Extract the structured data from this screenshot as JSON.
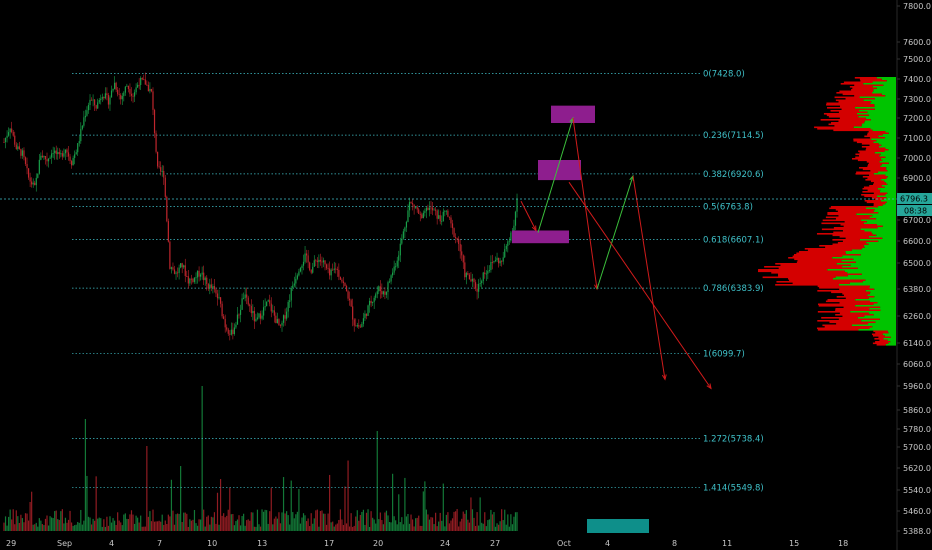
{
  "chart_data": {
    "type": "candlestick",
    "title": "",
    "price_axis": {
      "ticks": [
        7800,
        7600,
        7500,
        7400,
        7300,
        7200,
        7100,
        7000,
        6900,
        6800,
        6700,
        6600,
        6500,
        6380,
        6260,
        6140,
        6060,
        5960,
        5860,
        5780,
        5700,
        5620,
        5540,
        5460,
        5388
      ],
      "labels": [
        "7800.0",
        "7600.0",
        "7500.0",
        "7400.0",
        "7300.0",
        "7200.0",
        "7100.0",
        "7000.0",
        "6900.0",
        "6800.0",
        "6700.0",
        "6600.0",
        "6500.0",
        "6380.0",
        "6260.0",
        "6140.0",
        "6060.0",
        "5960.0",
        "5860.0",
        "5780.0",
        "5700.0",
        "5620.0",
        "5540.0",
        "5460.0",
        "5388.0"
      ]
    },
    "time_axis": {
      "labels": [
        "29",
        "Sep",
        "4",
        "7",
        "10",
        "13",
        "17",
        "20",
        "24",
        "27",
        "Oct",
        "4",
        "8",
        "11",
        "15",
        "18"
      ]
    },
    "current_price": "6796.3",
    "countdown": "08:38",
    "fib_levels": [
      {
        "ratio": "0",
        "price": 7428.0,
        "label": "0(7428.0)"
      },
      {
        "ratio": "0.236",
        "price": 7114.5,
        "label": "0.236(7114.5)"
      },
      {
        "ratio": "0.382",
        "price": 6920.6,
        "label": "0.382(6920.6)"
      },
      {
        "ratio": "0.5",
        "price": 6763.8,
        "label": "0.5(6763.8)"
      },
      {
        "ratio": "0.618",
        "price": 6607.1,
        "label": "0.618(6607.1)"
      },
      {
        "ratio": "0.786",
        "price": 6383.9,
        "label": "0.786(6383.9)"
      },
      {
        "ratio": "1",
        "price": 6099.7,
        "label": "1(6099.7)"
      },
      {
        "ratio": "1.272",
        "price": 5738.4,
        "label": "1.272(5738.4)"
      },
      {
        "ratio": "1.414",
        "price": 5549.8,
        "label": "1.414(5549.8)"
      }
    ],
    "price_path_keypoints": [
      [
        0,
        7080
      ],
      [
        4,
        7160
      ],
      [
        8,
        7050
      ],
      [
        12,
        7020
      ],
      [
        16,
        6900
      ],
      [
        20,
        6850
      ],
      [
        24,
        7020
      ],
      [
        28,
        6990
      ],
      [
        32,
        7040
      ],
      [
        36,
        7000
      ],
      [
        40,
        7050
      ],
      [
        44,
        6980
      ],
      [
        48,
        7060
      ],
      [
        52,
        7200
      ],
      [
        56,
        7300
      ],
      [
        60,
        7260
      ],
      [
        64,
        7330
      ],
      [
        68,
        7290
      ],
      [
        72,
        7380
      ],
      [
        76,
        7300
      ],
      [
        80,
        7370
      ],
      [
        84,
        7320
      ],
      [
        88,
        7390
      ],
      [
        92,
        7380
      ],
      [
        96,
        7330
      ],
      [
        100,
        6940
      ],
      [
        104,
        6920
      ],
      [
        108,
        6490
      ],
      [
        112,
        6450
      ],
      [
        116,
        6490
      ],
      [
        120,
        6420
      ],
      [
        124,
        6430
      ],
      [
        128,
        6460
      ],
      [
        132,
        6400
      ],
      [
        136,
        6380
      ],
      [
        140,
        6330
      ],
      [
        144,
        6220
      ],
      [
        148,
        6180
      ],
      [
        152,
        6250
      ],
      [
        156,
        6350
      ],
      [
        160,
        6300
      ],
      [
        164,
        6230
      ],
      [
        168,
        6280
      ],
      [
        172,
        6320
      ],
      [
        176,
        6260
      ],
      [
        180,
        6200
      ],
      [
        184,
        6290
      ],
      [
        188,
        6400
      ],
      [
        192,
        6480
      ],
      [
        196,
        6530
      ],
      [
        200,
        6470
      ],
      [
        204,
        6520
      ],
      [
        208,
        6500
      ],
      [
        212,
        6440
      ],
      [
        216,
        6480
      ],
      [
        220,
        6420
      ],
      [
        224,
        6350
      ],
      [
        228,
        6230
      ],
      [
        232,
        6210
      ],
      [
        236,
        6280
      ],
      [
        240,
        6340
      ],
      [
        244,
        6380
      ],
      [
        248,
        6360
      ],
      [
        252,
        6440
      ],
      [
        256,
        6520
      ],
      [
        260,
        6640
      ],
      [
        264,
        6780
      ],
      [
        268,
        6760
      ],
      [
        272,
        6700
      ],
      [
        276,
        6760
      ],
      [
        280,
        6740
      ],
      [
        284,
        6700
      ],
      [
        288,
        6740
      ],
      [
        292,
        6650
      ],
      [
        296,
        6590
      ],
      [
        300,
        6450
      ],
      [
        304,
        6420
      ],
      [
        308,
        6380
      ],
      [
        312,
        6450
      ],
      [
        316,
        6480
      ],
      [
        320,
        6520
      ],
      [
        324,
        6500
      ],
      [
        328,
        6600
      ],
      [
        332,
        6680
      ],
      [
        334,
        6796
      ]
    ],
    "projection_paths": [
      {
        "color": "green",
        "points": [
          [
            6715,
            6640
          ],
          [
            6800,
            7200
          ]
        ]
      },
      {
        "color": "red",
        "points": [
          [
            6800,
            7200
          ],
          [
            6995,
            6380
          ]
        ]
      },
      {
        "color": "green",
        "points": [
          [
            6995,
            6380
          ],
          [
            7180,
            6910
          ]
        ]
      },
      {
        "color": "red",
        "points": [
          [
            7180,
            6910
          ],
          [
            7435,
            5990
          ]
        ]
      },
      {
        "color": "red",
        "points": [
          [
            6850,
            6880
          ],
          [
            7410,
            5950
          ]
        ]
      },
      {
        "color": "red",
        "points": [
          [
            6660,
            6790
          ],
          [
            6720,
            6650
          ]
        ]
      }
    ],
    "highlight_zones": [
      {
        "price_top": 7265,
        "price_bottom": 7175
      },
      {
        "price_top": 6990,
        "price_bottom": 6890
      },
      {
        "price_top": 6650,
        "price_bottom": 6590
      }
    ],
    "colors": {
      "background": "#000000",
      "up": "#19a04a",
      "down": "#c0262d",
      "fib": "#3fc1c9",
      "zone": "#8e1e8e",
      "volume_profile_up": "#00c400",
      "volume_profile_down": "#d40000",
      "badge": "#26a69a"
    }
  }
}
